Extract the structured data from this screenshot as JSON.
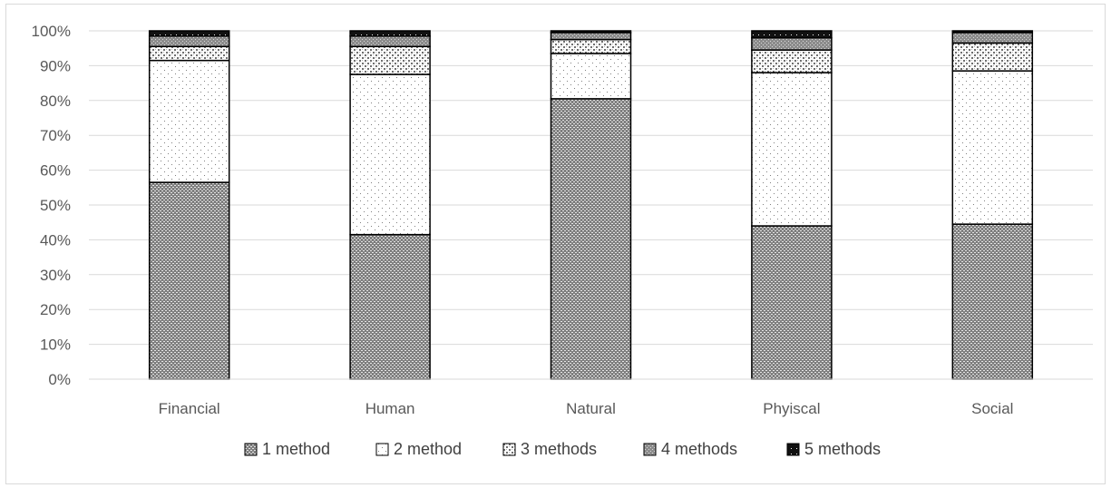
{
  "chart_data": {
    "type": "bar",
    "stacked": true,
    "normalized": true,
    "title": "",
    "xlabel": "",
    "ylabel": "",
    "categories": [
      "Financial",
      "Human",
      "Natural",
      "Phyiscal",
      "Social"
    ],
    "ylim": [
      0,
      100
    ],
    "y_ticks": [
      "0%",
      "10%",
      "20%",
      "30%",
      "40%",
      "50%",
      "60%",
      "70%",
      "80%",
      "90%",
      "100%"
    ],
    "grid": true,
    "legend_position": "bottom",
    "series": [
      {
        "name": "1 method",
        "values": [
          56.5,
          41.5,
          80.5,
          44,
          44.5
        ],
        "pattern": "dense-dark-dots"
      },
      {
        "name": "2 method",
        "values": [
          35,
          46,
          13,
          44,
          44
        ],
        "pattern": "sparse-dots"
      },
      {
        "name": "3 methods",
        "values": [
          4,
          8,
          4,
          6.5,
          8
        ],
        "pattern": "checker"
      },
      {
        "name": "4 methods",
        "values": [
          3,
          3,
          2,
          3.5,
          3
        ],
        "pattern": "grey-dots"
      },
      {
        "name": "5 methods",
        "values": [
          1.5,
          1.5,
          0.5,
          2,
          0.5
        ],
        "pattern": "solid-black"
      }
    ]
  }
}
